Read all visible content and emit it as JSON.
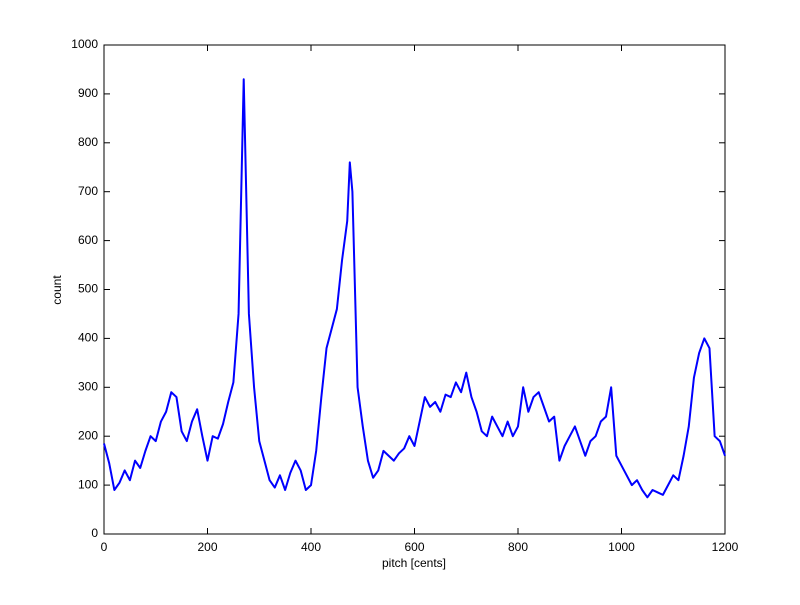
{
  "chart_data": {
    "type": "line",
    "x_label": "pitch [cents]",
    "y_label": "count",
    "x": [
      0,
      10,
      20,
      30,
      40,
      50,
      60,
      70,
      80,
      90,
      100,
      110,
      120,
      130,
      140,
      150,
      160,
      170,
      180,
      190,
      200,
      210,
      220,
      230,
      240,
      250,
      260,
      270,
      280,
      290,
      300,
      310,
      320,
      330,
      340,
      350,
      360,
      370,
      380,
      390,
      400,
      410,
      420,
      430,
      440,
      450,
      460,
      470,
      475,
      480,
      490,
      500,
      510,
      520,
      530,
      540,
      550,
      560,
      570,
      580,
      590,
      600,
      610,
      620,
      630,
      640,
      650,
      660,
      670,
      680,
      690,
      700,
      710,
      720,
      730,
      740,
      750,
      760,
      770,
      780,
      790,
      800,
      810,
      820,
      830,
      840,
      850,
      860,
      870,
      880,
      890,
      900,
      910,
      920,
      930,
      940,
      950,
      960,
      970,
      980,
      990,
      1000,
      1010,
      1020,
      1030,
      1040,
      1050,
      1060,
      1070,
      1080,
      1090,
      1100,
      1110,
      1120,
      1130,
      1140,
      1150,
      1160,
      1170,
      1180,
      1190,
      1200
    ],
    "values": [
      185,
      145,
      90,
      105,
      130,
      110,
      150,
      135,
      170,
      200,
      190,
      230,
      250,
      290,
      280,
      210,
      190,
      230,
      255,
      200,
      150,
      200,
      195,
      225,
      270,
      310,
      450,
      930,
      450,
      300,
      190,
      150,
      110,
      95,
      120,
      90,
      125,
      150,
      130,
      90,
      100,
      170,
      280,
      380,
      420,
      460,
      560,
      640,
      760,
      700,
      300,
      220,
      150,
      115,
      130,
      170,
      160,
      150,
      165,
      175,
      200,
      180,
      230,
      280,
      260,
      270,
      250,
      285,
      280,
      310,
      290,
      330,
      280,
      250,
      210,
      200,
      240,
      220,
      200,
      230,
      200,
      220,
      300,
      250,
      280,
      290,
      260,
      230,
      240,
      150,
      180,
      200,
      220,
      190,
      160,
      190,
      200,
      230,
      240,
      300,
      160,
      140,
      120,
      100,
      110,
      90,
      75,
      90,
      85,
      80,
      100,
      120,
      110,
      160,
      220,
      320,
      370,
      400,
      380,
      200,
      190,
      160
    ],
    "color": "#0000ff",
    "xlim": [
      0,
      1200
    ],
    "ylim": [
      0,
      1000
    ],
    "xticks": [
      0,
      200,
      400,
      600,
      800,
      1000,
      1200
    ],
    "yticks": [
      0,
      100,
      200,
      300,
      400,
      500,
      600,
      700,
      800,
      900,
      1000
    ]
  }
}
